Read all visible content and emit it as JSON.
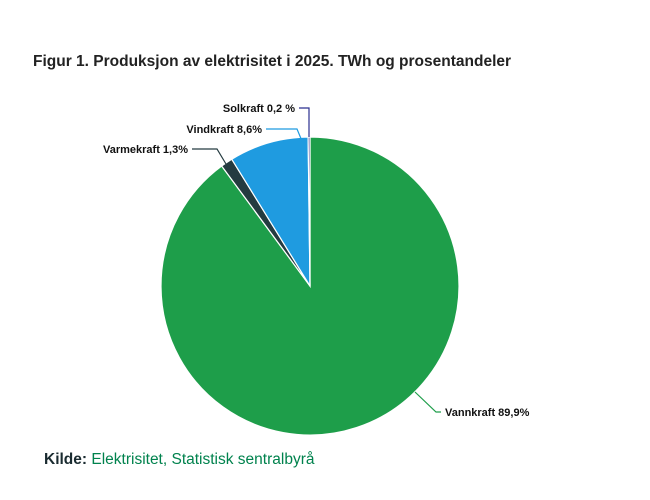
{
  "title": "Figur 1. Produksjon av elektrisitet i 2025. TWh og prosentandeler",
  "source": {
    "label": "Kilde:",
    "link_text": "Elektrisitet, Statistisk sentralbyrå"
  },
  "chart_data": {
    "type": "pie",
    "title": "Figur 1. Produksjon av elektrisitet i 2025. TWh og prosentandeler",
    "start_angle": "top, clockwise",
    "slices": [
      {
        "name": "Vannkraft",
        "value": 89.9,
        "label": "Vannkraft 89,9%",
        "color": "#1e9e4a"
      },
      {
        "name": "Varmekraft",
        "value": 1.3,
        "label": "Varmekraft 1,3%",
        "color": "#243b40"
      },
      {
        "name": "Vindkraft",
        "value": 8.6,
        "label": "Vindkraft 8,6%",
        "color": "#1f9be0"
      },
      {
        "name": "Solkraft",
        "value": 0.2,
        "label": "Solkraft 0,2 %",
        "color": "#2b2f8f"
      }
    ]
  }
}
